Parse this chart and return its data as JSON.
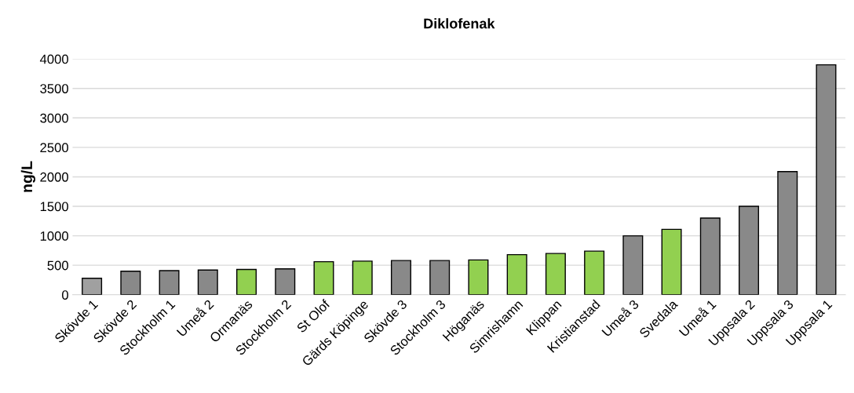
{
  "chart_data": {
    "type": "bar",
    "title": "Diklofenak",
    "ylabel": "ng/L",
    "categories": [
      "Skövde 1",
      "Skövde 2",
      "Stockholm 1",
      "Umeå 2",
      "Ormanäs",
      "Stockholm 2",
      "St Olof",
      "Gärds Köpinge",
      "Skövde 3",
      "Stockholm 3",
      "Höganäs",
      "Simrishamn",
      "Klippan",
      "Kristianstad",
      "Umeå 3",
      "Svedala",
      "Umeå 1",
      "Uppsala 2",
      "Uppsala 3",
      "Uppsala 1"
    ],
    "values": [
      280,
      400,
      410,
      420,
      430,
      440,
      560,
      570,
      580,
      580,
      590,
      680,
      700,
      740,
      1000,
      1110,
      1300,
      1500,
      2090,
      3900
    ],
    "colors": [
      "#a0a0a0",
      "#898989",
      "#898989",
      "#898989",
      "#92d050",
      "#898989",
      "#92d050",
      "#92d050",
      "#898989",
      "#898989",
      "#92d050",
      "#92d050",
      "#92d050",
      "#92d050",
      "#898989",
      "#92d050",
      "#898989",
      "#898989",
      "#898989",
      "#898989"
    ],
    "ylim": [
      0,
      4000
    ],
    "yticks": [
      0,
      500,
      1000,
      1500,
      2000,
      2500,
      3000,
      3500,
      4000
    ],
    "grid": "y",
    "legend": false
  }
}
